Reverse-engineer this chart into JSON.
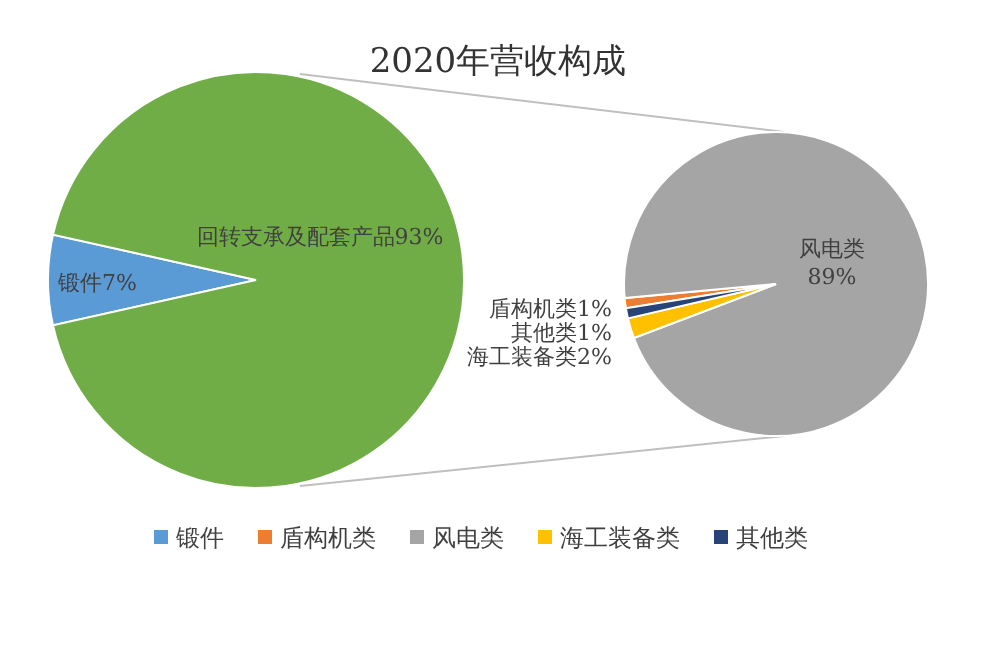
{
  "chart_data": [
    {
      "type": "pie",
      "title": "2020年营收构成",
      "categories": [
        "锻件",
        null
      ],
      "values": [
        7,
        93
      ],
      "colors": [
        "#5b9bd5",
        "#70ad47"
      ],
      "value_labels": [
        "锻件7%",
        "回转支承及配套产品93%"
      ],
      "legend": "bottom"
    },
    {
      "type": "pie",
      "categories": [
        "盾构机类",
        "风电类",
        "海工装备类",
        "其他类"
      ],
      "values": [
        1,
        89,
        2,
        1
      ],
      "colors": [
        "#ed7d31",
        "#a5a5a5",
        "#ffc000",
        "#264478"
      ],
      "value_labels": [
        "盾构机类1%",
        "风电类 89%",
        "海工装备类2%",
        "其他类1%"
      ],
      "legend": "bottom"
    }
  ]
}
